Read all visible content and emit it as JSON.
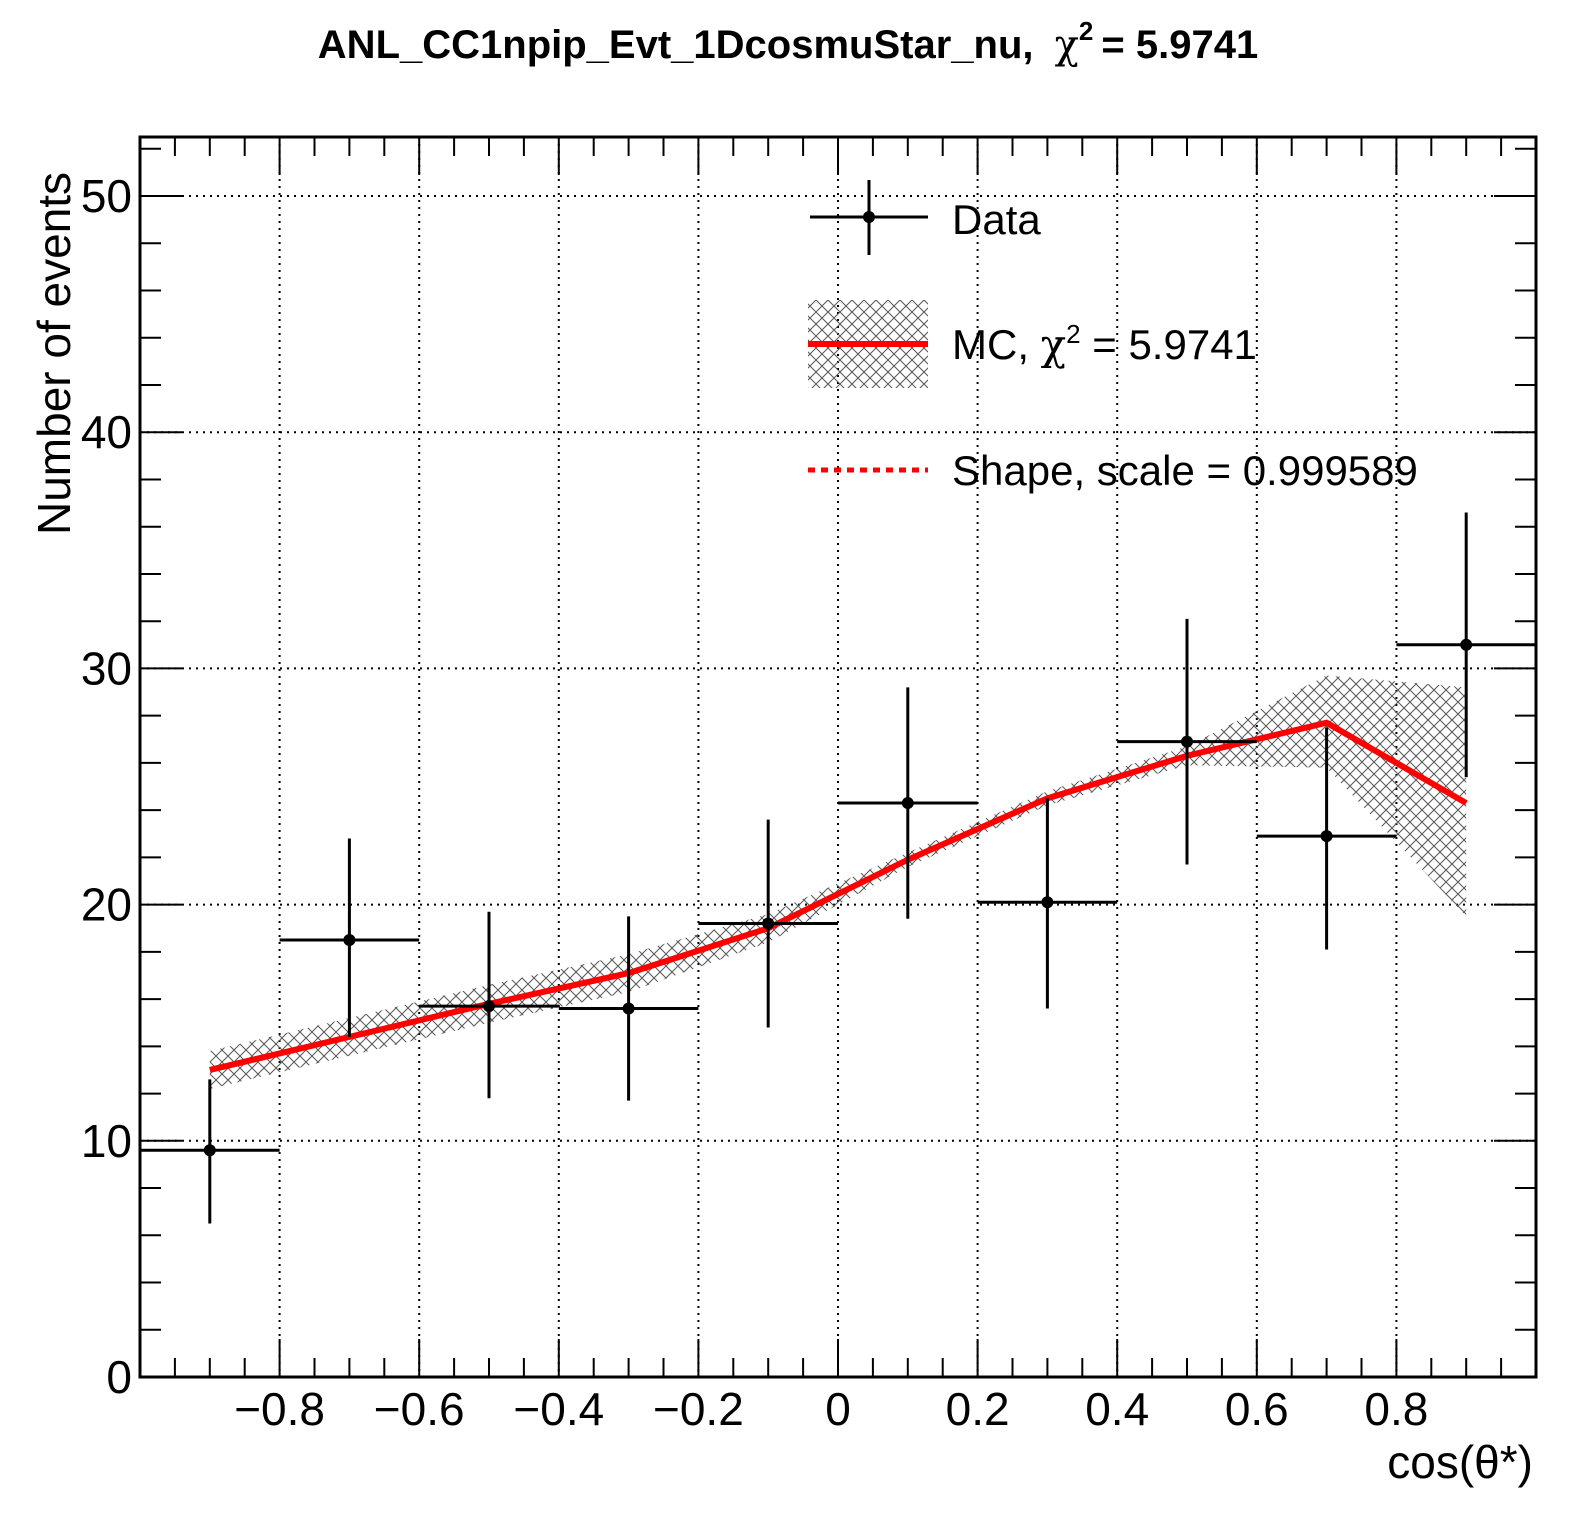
{
  "colors": {
    "data": "#000000",
    "mc_line": "#ff0000",
    "mc_band_hatch": "#555555",
    "grid": "#000000"
  },
  "chart_data": {
    "type": "line",
    "title": {
      "name": "ANL_CC1npip_Evt_1DcosmuStar_nu,",
      "chi_symbol": "χ",
      "sup": "2",
      "value": "= 5.9741"
    },
    "xlabel": "cos(θ*)",
    "ylabel": "Number of events",
    "xlim": [
      -1.0,
      1.0
    ],
    "ylim": [
      0,
      52.5
    ],
    "grid": true,
    "legend_position": "top-right",
    "x_tick_labels": [
      "−0.8",
      "−0.6",
      "−0.4",
      "−0.2",
      "0",
      "0.2",
      "0.4",
      "0.6",
      "0.8"
    ],
    "x_tick_values": [
      -0.8,
      -0.6,
      -0.4,
      -0.2,
      0,
      0.2,
      0.4,
      0.6,
      0.8
    ],
    "y_tick_labels": [
      "0",
      "10",
      "20",
      "30",
      "40",
      "50"
    ],
    "y_tick_values": [
      0,
      10,
      20,
      30,
      40,
      50
    ],
    "legend": {
      "data": "Data",
      "mc_prefix": "MC, ",
      "mc_chi": "χ",
      "mc_sup": "2",
      "mc_value": " = 5.9741",
      "shape": "Shape, scale = 0.999589"
    },
    "series": [
      {
        "name": "Data",
        "kind": "points_with_errors",
        "points": [
          {
            "x": -0.9,
            "xerr": 0.1,
            "y": 9.6,
            "ylo": 6.5,
            "yhi": 12.6
          },
          {
            "x": -0.7,
            "xerr": 0.1,
            "y": 18.5,
            "ylo": 14.4,
            "yhi": 22.8
          },
          {
            "x": -0.5,
            "xerr": 0.1,
            "y": 15.7,
            "ylo": 11.8,
            "yhi": 19.7
          },
          {
            "x": -0.3,
            "xerr": 0.1,
            "y": 15.6,
            "ylo": 11.7,
            "yhi": 19.5
          },
          {
            "x": -0.1,
            "xerr": 0.1,
            "y": 19.2,
            "ylo": 14.8,
            "yhi": 23.6
          },
          {
            "x": 0.1,
            "xerr": 0.1,
            "y": 24.3,
            "ylo": 19.4,
            "yhi": 29.2
          },
          {
            "x": 0.3,
            "xerr": 0.1,
            "y": 20.1,
            "ylo": 15.6,
            "yhi": 24.5
          },
          {
            "x": 0.5,
            "xerr": 0.1,
            "y": 26.9,
            "ylo": 21.7,
            "yhi": 32.1
          },
          {
            "x": 0.7,
            "xerr": 0.1,
            "y": 22.9,
            "ylo": 18.1,
            "yhi": 27.5
          },
          {
            "x": 0.9,
            "xerr": 0.1,
            "y": 31.0,
            "ylo": 25.4,
            "yhi": 36.6
          }
        ]
      },
      {
        "name": "MC",
        "kind": "line_with_band",
        "points": [
          {
            "x": -0.9,
            "y": 13.0,
            "lo": 12.2,
            "hi": 13.8
          },
          {
            "x": -0.7,
            "y": 14.4,
            "lo": 13.6,
            "hi": 15.2
          },
          {
            "x": -0.5,
            "y": 15.8,
            "lo": 15.0,
            "hi": 16.6
          },
          {
            "x": -0.3,
            "y": 17.1,
            "lo": 16.3,
            "hi": 17.9
          },
          {
            "x": -0.1,
            "y": 19.0,
            "lo": 18.4,
            "hi": 19.6
          },
          {
            "x": 0.1,
            "y": 21.9,
            "lo": 21.6,
            "hi": 22.2
          },
          {
            "x": 0.3,
            "y": 24.5,
            "lo": 24.2,
            "hi": 24.8
          },
          {
            "x": 0.5,
            "y": 26.3,
            "lo": 25.9,
            "hi": 26.7
          },
          {
            "x": 0.7,
            "y": 27.7,
            "lo": 25.8,
            "hi": 29.7
          },
          {
            "x": 0.9,
            "y": 24.3,
            "lo": 19.5,
            "hi": 29.2
          }
        ]
      }
    ]
  }
}
